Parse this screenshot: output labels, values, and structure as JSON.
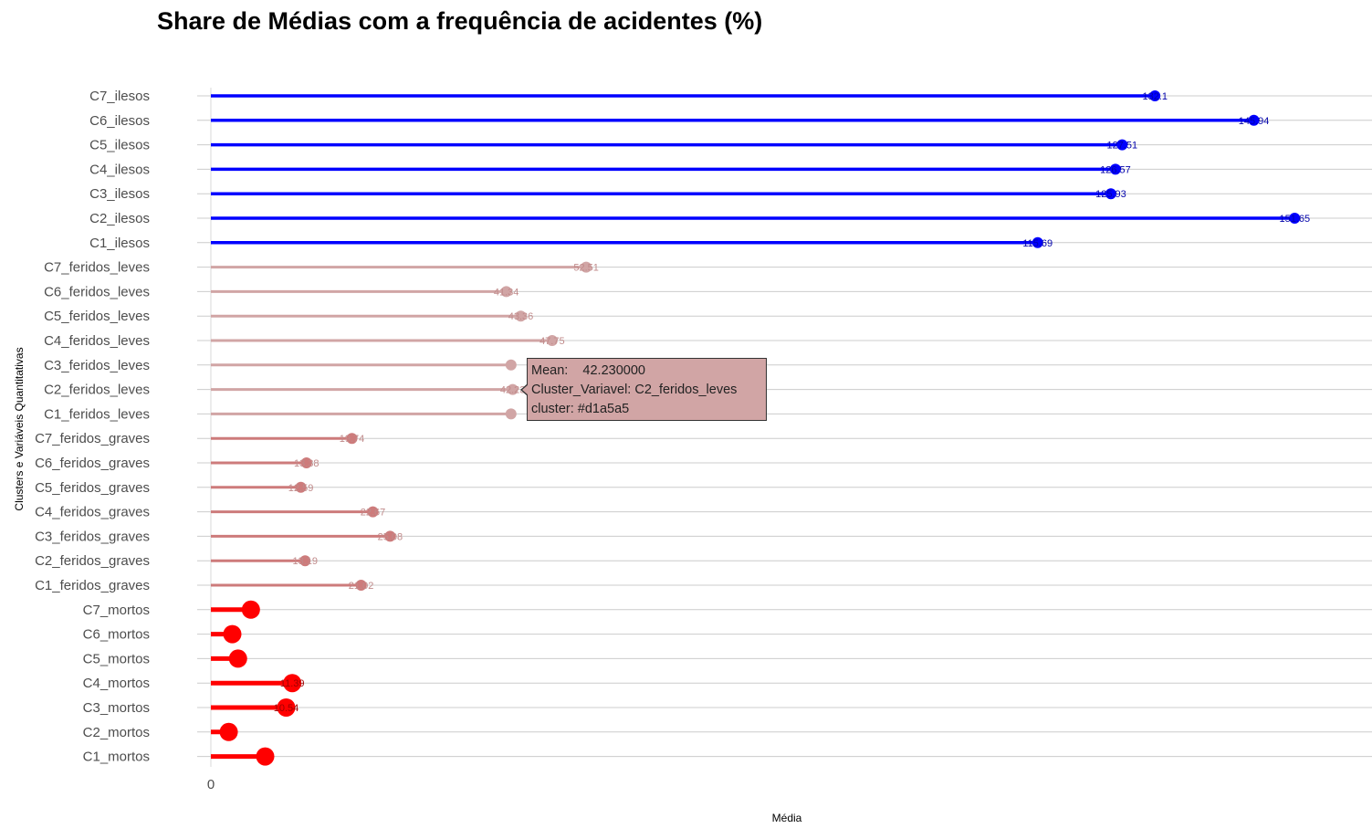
{
  "chart_data": {
    "type": "lollipop",
    "title": "Share de Médias com a frequência de acidentes (%)",
    "xlabel": "Média",
    "ylabel": "Clusters e Variáveis Quantitativas",
    "xlim": [
      0,
      158
    ],
    "x_ticks": [
      "0"
    ],
    "grid": "horizontal",
    "items": [
      {
        "label": "C7_ilesos",
        "value": 132.1,
        "value_label": "132.1",
        "color": "#0000ff"
      },
      {
        "label": "C6_ilesos",
        "value": 145.94,
        "value_label": "145.94",
        "color": "#0000ff"
      },
      {
        "label": "C5_ilesos",
        "value": 127.51,
        "value_label": "127.51",
        "color": "#0000ff"
      },
      {
        "label": "C4_ilesos",
        "value": 126.57,
        "value_label": "126.57",
        "color": "#0000ff"
      },
      {
        "label": "C3_ilesos",
        "value": 125.93,
        "value_label": "125.93",
        "color": "#0000ff"
      },
      {
        "label": "C2_ilesos",
        "value": 151.65,
        "value_label": "151.65",
        "color": "#0000ff"
      },
      {
        "label": "C1_ilesos",
        "value": 115.69,
        "value_label": "115.69",
        "color": "#0000ff"
      },
      {
        "label": "C7_feridos_leves",
        "value": 52.51,
        "value_label": "52.51",
        "color": "#d1a5a5"
      },
      {
        "label": "C6_feridos_leves",
        "value": 41.34,
        "value_label": "41.34",
        "color": "#d1a5a5"
      },
      {
        "label": "C5_feridos_leves",
        "value": 43.36,
        "value_label": "43.36",
        "color": "#d1a5a5"
      },
      {
        "label": "C4_feridos_leves",
        "value": 47.75,
        "value_label": "47.75",
        "color": "#d1a5a5"
      },
      {
        "label": "C3_feridos_leves",
        "value": 42.0,
        "value_label": "",
        "color": "#d1a5a5"
      },
      {
        "label": "C2_feridos_leves",
        "value": 42.23,
        "value_label": "42.23",
        "color": "#d1a5a5"
      },
      {
        "label": "C1_feridos_leves",
        "value": 42.0,
        "value_label": "",
        "color": "#d1a5a5"
      },
      {
        "label": "C7_feridos_graves",
        "value": 19.74,
        "value_label": "19.74",
        "color": "#cd7b7b"
      },
      {
        "label": "C6_feridos_graves",
        "value": 13.38,
        "value_label": "13.38",
        "color": "#cd7b7b"
      },
      {
        "label": "C5_feridos_graves",
        "value": 12.59,
        "value_label": "12.59",
        "color": "#cd7b7b"
      },
      {
        "label": "C4_feridos_graves",
        "value": 22.67,
        "value_label": "22.67",
        "color": "#cd7b7b"
      },
      {
        "label": "C3_feridos_graves",
        "value": 25.08,
        "value_label": "25.08",
        "color": "#cd7b7b"
      },
      {
        "label": "C2_feridos_graves",
        "value": 13.19,
        "value_label": "13.19",
        "color": "#cd7b7b"
      },
      {
        "label": "C1_feridos_graves",
        "value": 21.02,
        "value_label": "21.02",
        "color": "#cd7b7b"
      },
      {
        "label": "C7_mortos",
        "value": 5.6,
        "value_label": "",
        "color": "#ff0000"
      },
      {
        "label": "C6_mortos",
        "value": 3.0,
        "value_label": "",
        "color": "#ff0000"
      },
      {
        "label": "C5_mortos",
        "value": 3.8,
        "value_label": "",
        "color": "#ff0000"
      },
      {
        "label": "C4_mortos",
        "value": 11.39,
        "value_label": "11.39",
        "color": "#ff0000"
      },
      {
        "label": "C3_mortos",
        "value": 10.54,
        "value_label": "10.54",
        "color": "#ff0000"
      },
      {
        "label": "C2_mortos",
        "value": 2.5,
        "value_label": "",
        "color": "#ff0000"
      },
      {
        "label": "C1_mortos",
        "value": 7.6,
        "value_label": "",
        "color": "#ff0000"
      }
    ]
  },
  "tooltip": {
    "mean_line": "Mean:    42.230000",
    "cluster_variavel_line": "Cluster_Variavel: C2_feridos_leves",
    "cluster_line": "cluster: #d1a5a5"
  }
}
